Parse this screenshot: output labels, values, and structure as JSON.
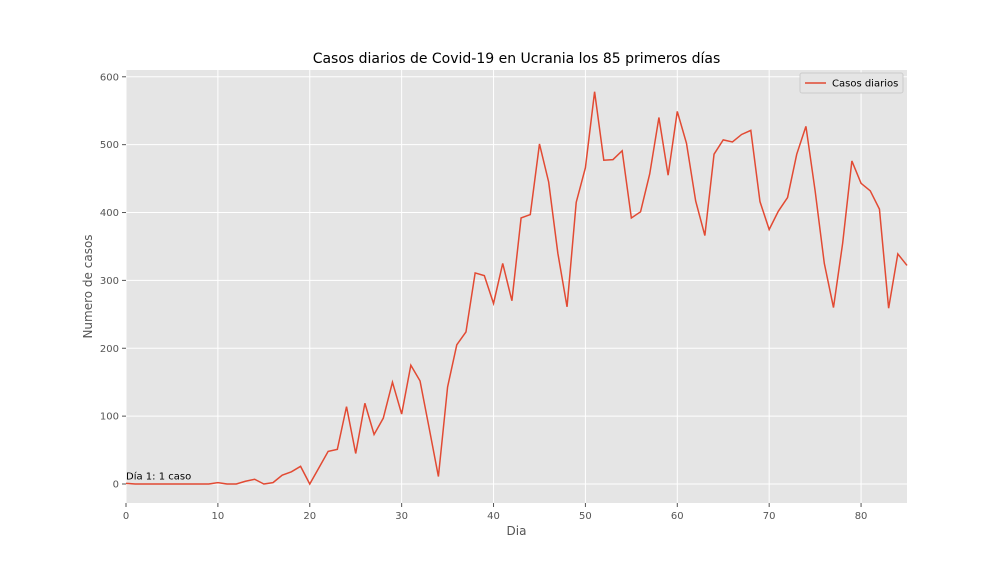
{
  "chart_data": {
    "type": "line",
    "title": "Casos diarios de Covid-19 en Ucrania los 85 primeros días",
    "xlabel": "Dia",
    "ylabel": "Numero de casos",
    "xlim": [
      0,
      85
    ],
    "ylim": [
      -28,
      610
    ],
    "xticks": [
      0,
      10,
      20,
      30,
      40,
      50,
      60,
      70,
      80
    ],
    "yticks": [
      0,
      100,
      200,
      300,
      400,
      500,
      600
    ],
    "grid": true,
    "style": "ggplot",
    "legend_position": "top-right",
    "series": [
      {
        "name": "Casos diarios",
        "color": "#e24a33",
        "x": [
          0,
          1,
          2,
          3,
          4,
          5,
          6,
          7,
          8,
          9,
          10,
          11,
          12,
          13,
          14,
          15,
          16,
          17,
          18,
          19,
          20,
          21,
          22,
          23,
          24,
          25,
          26,
          27,
          28,
          29,
          30,
          31,
          32,
          33,
          34,
          35,
          36,
          37,
          38,
          39,
          40,
          41,
          42,
          43,
          44,
          45,
          46,
          47,
          48,
          49,
          50,
          51,
          52,
          53,
          54,
          55,
          56,
          57,
          58,
          59,
          60,
          61,
          62,
          63,
          64,
          65,
          66,
          67,
          68,
          69,
          70,
          71,
          72,
          73,
          74,
          75,
          76,
          77,
          78,
          79,
          80,
          81,
          82,
          83,
          84,
          85
        ],
        "values": [
          1,
          0,
          0,
          0,
          0,
          0,
          0,
          0,
          0,
          0,
          2,
          0,
          0,
          4,
          7,
          0,
          2,
          13,
          18,
          26,
          0,
          24,
          48,
          51,
          114,
          45,
          119,
          73,
          97,
          150,
          103,
          175,
          152,
          82,
          11,
          143,
          205,
          224,
          311,
          307,
          266,
          325,
          270,
          392,
          397,
          501,
          445,
          340,
          261,
          415,
          466,
          578,
          477,
          478,
          491,
          392,
          401,
          457,
          540,
          455,
          549,
          502,
          417,
          366,
          486,
          507,
          504,
          515,
          521,
          416,
          375,
          402,
          422,
          486,
          527,
          432,
          325,
          260,
          355,
          476,
          443,
          432,
          405,
          259,
          339,
          322
        ]
      }
    ],
    "annotations": [
      {
        "text": "Día 1: 1 caso",
        "x": 0,
        "y": 1
      }
    ]
  }
}
